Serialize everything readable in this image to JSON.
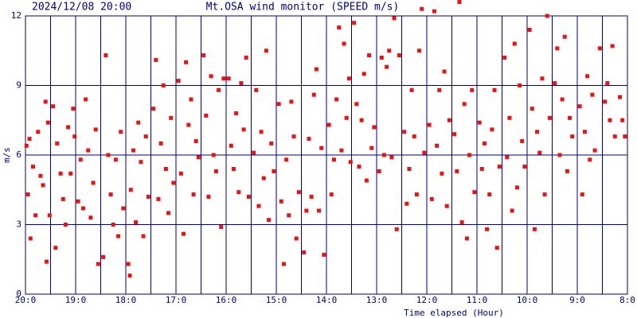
{
  "chart_data": {
    "type": "scatter",
    "date": "2024/12/08 20:00",
    "title": "Mt.OSA wind monitor (SPEED m/s)",
    "y_label": "m/s",
    "x_label": "Time elapsed (Hour)",
    "color": "#ee1111",
    "grid": true,
    "xlim": [
      0,
      12
    ],
    "ylim": [
      0,
      12
    ],
    "yticks": [
      0,
      3,
      6,
      9,
      12
    ],
    "xticks": [
      {
        "value": 0,
        "label": "20:0"
      },
      {
        "value": 1,
        "label": "19:0"
      },
      {
        "value": 2,
        "label": "18:0"
      },
      {
        "value": 3,
        "label": "17:0"
      },
      {
        "value": 4,
        "label": "16:0"
      },
      {
        "value": 5,
        "label": "15:0"
      },
      {
        "value": 6,
        "label": "14:0"
      },
      {
        "value": 7,
        "label": "13:0"
      },
      {
        "value": 8,
        "label": "12:0"
      },
      {
        "value": 9,
        "label": "11:0"
      },
      {
        "value": 10,
        "label": "10:0"
      },
      {
        "value": 11,
        "label": "9:0"
      },
      {
        "value": 12,
        "label": "8:0"
      }
    ],
    "x_minor_ticks": [
      0.5,
      1.5,
      2.5,
      3.5,
      4.5,
      5.5,
      6.5,
      7.5,
      8.5,
      9.5,
      10.5,
      11.5
    ],
    "x": [
      0.02,
      0.05,
      0.08,
      0.1,
      0.15,
      0.2,
      0.25,
      0.3,
      0.35,
      0.4,
      0.42,
      0.45,
      0.48,
      0.55,
      0.6,
      0.63,
      0.7,
      0.75,
      0.8,
      0.85,
      0.9,
      0.95,
      0.98,
      1.05,
      1.1,
      1.15,
      1.2,
      1.25,
      1.3,
      1.35,
      1.4,
      1.45,
      1.55,
      1.6,
      1.65,
      1.7,
      1.75,
      1.8,
      1.85,
      1.9,
      1.95,
      2.05,
      2.08,
      2.1,
      2.15,
      2.2,
      2.25,
      2.3,
      2.35,
      2.4,
      2.45,
      2.55,
      2.6,
      2.65,
      2.7,
      2.75,
      2.8,
      2.85,
      2.9,
      2.95,
      3.05,
      3.1,
      3.15,
      3.2,
      3.25,
      3.3,
      3.35,
      3.4,
      3.45,
      3.55,
      3.6,
      3.65,
      3.7,
      3.75,
      3.8,
      3.85,
      3.9,
      3.95,
      4.05,
      4.1,
      4.15,
      4.2,
      4.25,
      4.3,
      4.35,
      4.4,
      4.45,
      4.55,
      4.6,
      4.65,
      4.7,
      4.75,
      4.8,
      4.85,
      4.9,
      4.95,
      5.05,
      5.1,
      5.15,
      5.2,
      5.25,
      5.3,
      5.35,
      5.4,
      5.45,
      5.55,
      5.6,
      5.65,
      5.7,
      5.75,
      5.8,
      5.85,
      5.9,
      5.95,
      6.05,
      6.1,
      6.15,
      6.2,
      6.25,
      6.3,
      6.35,
      6.4,
      6.45,
      6.48,
      6.55,
      6.6,
      6.65,
      6.7,
      6.75,
      6.8,
      6.85,
      6.9,
      6.95,
      7.05,
      7.1,
      7.15,
      7.2,
      7.25,
      7.3,
      7.35,
      7.4,
      7.45,
      7.55,
      7.6,
      7.65,
      7.7,
      7.75,
      7.8,
      7.85,
      7.9,
      7.95,
      8.05,
      8.1,
      8.15,
      8.2,
      8.25,
      8.3,
      8.35,
      8.4,
      8.45,
      8.55,
      8.6,
      8.65,
      8.7,
      8.75,
      8.8,
      8.85,
      8.9,
      8.95,
      9.05,
      9.1,
      9.15,
      9.2,
      9.25,
      9.3,
      9.35,
      9.4,
      9.45,
      9.55,
      9.6,
      9.65,
      9.7,
      9.75,
      9.8,
      9.85,
      9.9,
      9.95,
      10.05,
      10.1,
      10.15,
      10.2,
      10.25,
      10.3,
      10.35,
      10.4,
      10.45,
      10.55,
      10.6,
      10.65,
      10.7,
      10.75,
      10.8,
      10.85,
      10.9,
      11.05,
      11.1,
      11.15,
      11.2,
      11.25,
      11.3,
      11.35,
      11.45,
      11.55,
      11.6,
      11.65,
      11.7,
      11.75,
      11.85,
      11.9,
      11.95
    ],
    "values": [
      6.4,
      4.3,
      6.7,
      2.4,
      5.5,
      3.4,
      7.0,
      5.1,
      4.7,
      8.3,
      1.4,
      7.4,
      3.4,
      8.1,
      2.0,
      6.5,
      5.2,
      4.1,
      3.0,
      7.2,
      5.2,
      8.0,
      6.8,
      4.0,
      5.8,
      3.7,
      8.4,
      6.2,
      3.3,
      4.8,
      7.1,
      1.3,
      1.6,
      10.3,
      6.0,
      4.3,
      3.0,
      5.8,
      2.5,
      7.0,
      3.7,
      1.3,
      0.8,
      4.5,
      6.2,
      3.1,
      7.4,
      5.7,
      2.5,
      6.8,
      4.2,
      8.0,
      10.1,
      4.1,
      6.5,
      9.0,
      5.4,
      3.5,
      7.6,
      4.8,
      9.2,
      5.2,
      2.6,
      10.0,
      7.3,
      8.4,
      4.3,
      6.6,
      5.9,
      10.3,
      7.7,
      4.2,
      9.4,
      6.0,
      5.3,
      8.8,
      2.9,
      9.3,
      9.3,
      6.4,
      5.4,
      7.8,
      4.4,
      9.1,
      7.1,
      10.2,
      4.2,
      6.1,
      8.8,
      3.8,
      7.0,
      5.0,
      10.5,
      3.2,
      6.5,
      5.3,
      8.2,
      4.0,
      1.3,
      5.8,
      3.4,
      8.3,
      6.8,
      2.4,
      4.4,
      1.8,
      3.6,
      6.7,
      4.2,
      8.6,
      9.7,
      3.6,
      6.3,
      1.7,
      7.3,
      4.3,
      5.8,
      8.4,
      11.5,
      6.2,
      10.8,
      7.6,
      9.3,
      5.7,
      11.7,
      8.2,
      5.5,
      7.5,
      9.5,
      4.9,
      10.3,
      6.3,
      7.2,
      5.3,
      10.2,
      6.0,
      9.8,
      10.5,
      5.9,
      11.9,
      2.8,
      10.3,
      7.0,
      3.9,
      5.4,
      8.8,
      6.8,
      4.3,
      10.5,
      12.3,
      6.1,
      7.3,
      4.1,
      12.2,
      6.4,
      8.8,
      5.2,
      9.6,
      3.8,
      7.5,
      6.9,
      5.3,
      12.6,
      3.1,
      8.2,
      2.4,
      6.0,
      8.8,
      4.4,
      7.4,
      5.4,
      6.5,
      2.8,
      4.3,
      7.1,
      8.8,
      2.0,
      5.5,
      10.2,
      5.9,
      7.6,
      3.6,
      10.8,
      4.6,
      9.0,
      6.6,
      5.5,
      11.4,
      8.0,
      2.8,
      7.0,
      6.1,
      9.3,
      4.3,
      12.0,
      7.6,
      9.1,
      10.6,
      6.0,
      8.4,
      11.1,
      5.3,
      7.6,
      6.8,
      8.1,
      4.3,
      7.0,
      9.4,
      5.8,
      8.6,
      6.2,
      10.6,
      8.3,
      9.1,
      7.5,
      10.7,
      6.8,
      8.5,
      7.5,
      6.8
    ]
  }
}
